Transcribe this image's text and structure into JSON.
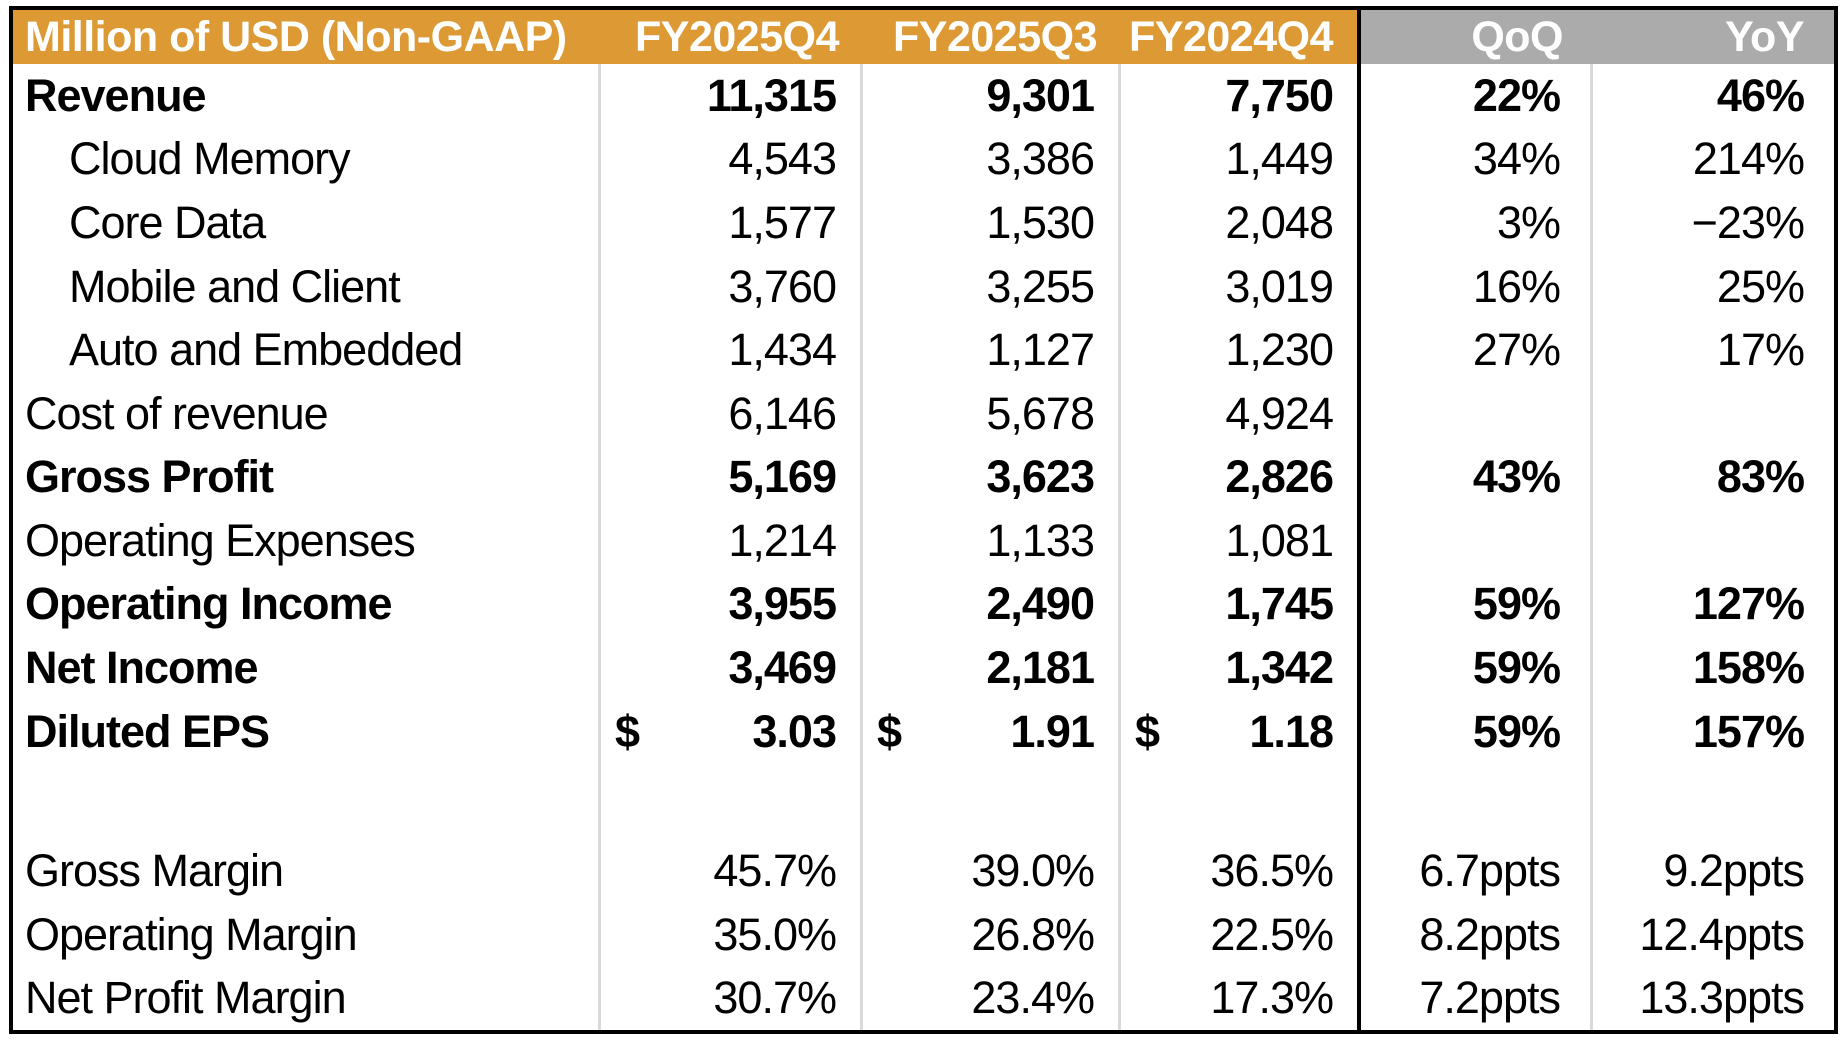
{
  "table": {
    "title_cell": "Million of USD (Non-GAAP)",
    "period_columns": [
      "FY2025Q4",
      "FY2025Q3",
      "FY2024Q4"
    ],
    "change_columns": [
      "QoQ",
      "YoY"
    ],
    "currency_symbol": "$",
    "rows": [
      {
        "label": "Revenue",
        "bold": true,
        "indent": false,
        "dollar": false,
        "blank": false,
        "values": [
          "11,315",
          "9,301",
          "7,750"
        ],
        "qoq": "22%",
        "yoy": "46%"
      },
      {
        "label": "Cloud Memory",
        "bold": false,
        "indent": true,
        "dollar": false,
        "blank": false,
        "values": [
          "4,543",
          "3,386",
          "1,449"
        ],
        "qoq": "34%",
        "yoy": "214%"
      },
      {
        "label": "Core Data",
        "bold": false,
        "indent": true,
        "dollar": false,
        "blank": false,
        "values": [
          "1,577",
          "1,530",
          "2,048"
        ],
        "qoq": "3%",
        "yoy": "−23%"
      },
      {
        "label": "Mobile and Client",
        "bold": false,
        "indent": true,
        "dollar": false,
        "blank": false,
        "values": [
          "3,760",
          "3,255",
          "3,019"
        ],
        "qoq": "16%",
        "yoy": "25%"
      },
      {
        "label": "Auto and Embedded",
        "bold": false,
        "indent": true,
        "dollar": false,
        "blank": false,
        "values": [
          "1,434",
          "1,127",
          "1,230"
        ],
        "qoq": "27%",
        "yoy": "17%"
      },
      {
        "label": "Cost of revenue",
        "bold": false,
        "indent": false,
        "dollar": false,
        "blank": false,
        "values": [
          "6,146",
          "5,678",
          "4,924"
        ],
        "qoq": "",
        "yoy": ""
      },
      {
        "label": "Gross Profit",
        "bold": true,
        "indent": false,
        "dollar": false,
        "blank": false,
        "values": [
          "5,169",
          "3,623",
          "2,826"
        ],
        "qoq": "43%",
        "yoy": "83%"
      },
      {
        "label": "Operating Expenses",
        "bold": false,
        "indent": false,
        "dollar": false,
        "blank": false,
        "values": [
          "1,214",
          "1,133",
          "1,081"
        ],
        "qoq": "",
        "yoy": ""
      },
      {
        "label": "Operating Income",
        "bold": true,
        "indent": false,
        "dollar": false,
        "blank": false,
        "values": [
          "3,955",
          "2,490",
          "1,745"
        ],
        "qoq": "59%",
        "yoy": "127%"
      },
      {
        "label": "Net Income",
        "bold": true,
        "indent": false,
        "dollar": false,
        "blank": false,
        "values": [
          "3,469",
          "2,181",
          "1,342"
        ],
        "qoq": "59%",
        "yoy": "158%"
      },
      {
        "label": "Diluted EPS",
        "bold": true,
        "indent": false,
        "dollar": true,
        "blank": false,
        "values": [
          "3.03",
          "1.91",
          "1.18"
        ],
        "qoq": "59%",
        "yoy": "157%"
      },
      {
        "label": "",
        "bold": false,
        "indent": false,
        "dollar": false,
        "blank": true,
        "values": [
          "",
          "",
          ""
        ],
        "qoq": "",
        "yoy": ""
      },
      {
        "label": "Gross Margin",
        "bold": false,
        "indent": false,
        "dollar": false,
        "blank": false,
        "values": [
          "45.7%",
          "39.0%",
          "36.5%"
        ],
        "qoq": "6.7ppts",
        "yoy": "9.2ppts"
      },
      {
        "label": "Operating Margin",
        "bold": false,
        "indent": false,
        "dollar": false,
        "blank": false,
        "values": [
          "35.0%",
          "26.8%",
          "22.5%"
        ],
        "qoq": "8.2ppts",
        "yoy": "12.4ppts"
      },
      {
        "label": "Net Profit Margin",
        "bold": false,
        "indent": false,
        "dollar": false,
        "blank": false,
        "values": [
          "30.7%",
          "23.4%",
          "17.3%"
        ],
        "qoq": "7.2ppts",
        "yoy": "13.3ppts"
      }
    ],
    "colors": {
      "header_orange": "#DC9934",
      "header_gray": "#ABABAB",
      "header_text": "#FFFFFF",
      "body_text": "#000000",
      "separator": "#D9D9D9",
      "border": "#000000"
    }
  },
  "chart_data": {
    "type": "table",
    "title": "Million of USD (Non-GAAP)",
    "columns": [
      "Million of USD (Non-GAAP)",
      "FY2025Q4",
      "FY2025Q3",
      "FY2024Q4",
      "QoQ",
      "YoY"
    ],
    "rows": [
      [
        "Revenue",
        11315,
        9301,
        7750,
        "22%",
        "46%"
      ],
      [
        "Cloud Memory",
        4543,
        3386,
        1449,
        "34%",
        "214%"
      ],
      [
        "Core Data",
        1577,
        1530,
        2048,
        "3%",
        "−23%"
      ],
      [
        "Mobile and Client",
        3760,
        3255,
        3019,
        "16%",
        "25%"
      ],
      [
        "Auto and Embedded",
        1434,
        1127,
        1230,
        "27%",
        "17%"
      ],
      [
        "Cost of revenue",
        6146,
        5678,
        4924,
        "",
        ""
      ],
      [
        "Gross Profit",
        5169,
        3623,
        2826,
        "43%",
        "83%"
      ],
      [
        "Operating Expenses",
        1214,
        1133,
        1081,
        "",
        ""
      ],
      [
        "Operating Income",
        3955,
        2490,
        1745,
        "59%",
        "127%"
      ],
      [
        "Net Income",
        3469,
        2181,
        1342,
        "59%",
        "158%"
      ],
      [
        "Diluted EPS",
        "$ 3.03",
        "$ 1.91",
        "$ 1.18",
        "59%",
        "157%"
      ],
      [
        "Gross Margin",
        "45.7%",
        "39.0%",
        "36.5%",
        "6.7ppts",
        "9.2ppts"
      ],
      [
        "Operating Margin",
        "35.0%",
        "26.8%",
        "22.5%",
        "8.2ppts",
        "12.4ppts"
      ],
      [
        "Net Profit Margin",
        "30.7%",
        "23.4%",
        "17.3%",
        "7.2ppts",
        "13.3ppts"
      ]
    ],
    "layout": {
      "bold_rows": [
        "Revenue",
        "Gross Profit",
        "Operating Income",
        "Net Income",
        "Diluted EPS"
      ],
      "indented_rows": [
        "Cloud Memory",
        "Core Data",
        "Mobile and Client",
        "Auto and Embedded"
      ],
      "header_fill_periods": "#DC9934",
      "header_fill_changes": "#ABABAB",
      "thick_divider_after_column": "FY2024Q4"
    }
  }
}
